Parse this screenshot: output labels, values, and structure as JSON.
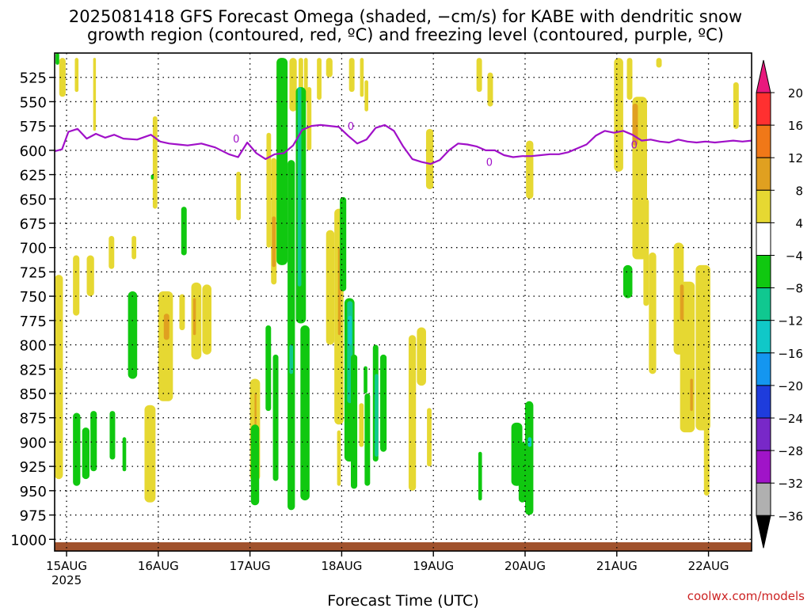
{
  "title_line1": "2025081418 GFS Forecast Omega (shaded, −cm/s) for KABE with dendritic snow",
  "title_line2": "growth region (contoured, red, ºC) and freezing level (contoured, purple, ºC)",
  "credit": "coolwx.com/models",
  "chart_data": {
    "type": "heatmap",
    "title": "2025081418 GFS Forecast Omega (shaded, −cm/s) for KABE with dendritic snow growth region (contoured, red, ºC) and freezing level (contoured, purple, ºC)",
    "xlabel": "Forecast Time (UTC)",
    "ylabel": "",
    "y_reversed": true,
    "ylim": [
      1012,
      500
    ],
    "xlim": [
      0.0,
      7.6
    ],
    "y_ticks": [
      525,
      550,
      575,
      600,
      625,
      650,
      675,
      700,
      725,
      750,
      775,
      800,
      825,
      850,
      875,
      900,
      925,
      950,
      975,
      1000
    ],
    "x_ticks": [
      {
        "x": 0.13,
        "label": "15AUG",
        "sub": "2025"
      },
      {
        "x": 1.13,
        "label": "16AUG"
      },
      {
        "x": 2.13,
        "label": "17AUG"
      },
      {
        "x": 3.13,
        "label": "18AUG"
      },
      {
        "x": 4.13,
        "label": "19AUG"
      },
      {
        "x": 5.13,
        "label": "20AUG"
      },
      {
        "x": 6.13,
        "label": "21AUG"
      },
      {
        "x": 7.13,
        "label": "22AUG"
      }
    ],
    "grid": true,
    "colorbar": {
      "labels": [
        "20",
        "16",
        "12",
        "8",
        "4",
        "−4",
        "−8",
        "−12",
        "−16",
        "−20",
        "−24",
        "−28",
        "−32",
        "−36"
      ],
      "bins": [
        {
          "from": 16,
          "to": 20,
          "color": "#ff3030"
        },
        {
          "from": 12,
          "to": 16,
          "color": "#f07818"
        },
        {
          "from": 8,
          "to": 12,
          "color": "#e0a020"
        },
        {
          "from": 4,
          "to": 8,
          "color": "#e6d832"
        },
        {
          "from": -4,
          "to": 4,
          "color": "#ffffff"
        },
        {
          "from": -8,
          "to": -4,
          "color": "#10c810"
        },
        {
          "from": -12,
          "to": -8,
          "color": "#10c890"
        },
        {
          "from": -16,
          "to": -12,
          "color": "#10c8c8"
        },
        {
          "from": -20,
          "to": -16,
          "color": "#1496f0"
        },
        {
          "from": -24,
          "to": -20,
          "color": "#1e3cdc"
        },
        {
          "from": -28,
          "to": -24,
          "color": "#7828c8"
        },
        {
          "from": -32,
          "to": -28,
          "color": "#a014c8"
        },
        {
          "from": -36,
          "to": -32,
          "color": "#b0b0b0"
        }
      ],
      "above_color": "#e8197d",
      "below_color": "#000000"
    },
    "freezing_level": {
      "label": "0",
      "color": "#a010c8",
      "x": [
        0.0,
        0.08,
        0.15,
        0.25,
        0.35,
        0.45,
        0.55,
        0.65,
        0.75,
        0.9,
        1.05,
        1.15,
        1.25,
        1.35,
        1.45,
        1.6,
        1.75,
        1.9,
        2.0,
        2.1,
        2.2,
        2.3,
        2.4,
        2.5,
        2.6,
        2.7,
        2.8,
        2.9,
        3.0,
        3.1,
        3.2,
        3.3,
        3.4,
        3.5,
        3.6,
        3.7,
        3.8,
        3.9,
        4.0,
        4.1,
        4.2,
        4.3,
        4.4,
        4.5,
        4.6,
        4.7,
        4.8,
        4.9,
        5.0,
        5.1,
        5.2,
        5.3,
        5.4,
        5.5,
        5.6,
        5.7,
        5.8,
        5.9,
        6.0,
        6.1,
        6.2,
        6.3,
        6.4,
        6.5,
        6.6,
        6.7,
        6.8,
        6.9,
        7.0,
        7.1,
        7.2,
        7.3,
        7.4,
        7.5,
        7.6
      ],
      "y": [
        601,
        599,
        581,
        578,
        588,
        583,
        587,
        584,
        588,
        589,
        584,
        591,
        593,
        594,
        595,
        593,
        597,
        604,
        607,
        592,
        603,
        609,
        604,
        603,
        595,
        579,
        575,
        574,
        575,
        576,
        585,
        593,
        589,
        577,
        574,
        580,
        596,
        609,
        612,
        614,
        610,
        600,
        593,
        594,
        596,
        600,
        600,
        605,
        607,
        606,
        606,
        605,
        604,
        604,
        602,
        598,
        594,
        585,
        580,
        582,
        580,
        584,
        590,
        589,
        591,
        592,
        589,
        591,
        592,
        591,
        592,
        591,
        590,
        591,
        590
      ]
    },
    "surface_strip": {
      "from": 1012,
      "to": 1003,
      "color": "#a0522d"
    },
    "cells": [
      {
        "x0": 0.05,
        "x1": 0.12,
        "p0": 505,
        "p1": 545,
        "v": 5
      },
      {
        "x0": 0.22,
        "x1": 0.26,
        "p0": 505,
        "p1": 540,
        "v": 5
      },
      {
        "x0": 0.42,
        "x1": 0.45,
        "p0": 505,
        "p1": 580,
        "v": 5
      },
      {
        "x0": 0.0,
        "x1": 0.09,
        "p0": 728,
        "p1": 938,
        "v": 5
      },
      {
        "x0": 0.2,
        "x1": 0.27,
        "p0": 708,
        "p1": 770,
        "v": 5
      },
      {
        "x0": 0.35,
        "x1": 0.43,
        "p0": 708,
        "p1": 750,
        "v": 5
      },
      {
        "x0": 0.59,
        "x1": 0.65,
        "p0": 688,
        "p1": 722,
        "v": 5
      },
      {
        "x0": 0.84,
        "x1": 0.89,
        "p0": 688,
        "p1": 712,
        "v": 5
      },
      {
        "x0": 1.07,
        "x1": 1.12,
        "p0": 565,
        "p1": 660,
        "v": 5
      },
      {
        "x0": 0.98,
        "x1": 1.1,
        "p0": 862,
        "p1": 962,
        "v": 5
      },
      {
        "x0": 1.13,
        "x1": 1.29,
        "p0": 745,
        "p1": 858,
        "v": 5
      },
      {
        "x0": 1.19,
        "x1": 1.25,
        "p0": 768,
        "p1": 795,
        "v": 9
      },
      {
        "x0": 1.36,
        "x1": 1.42,
        "p0": 748,
        "p1": 785,
        "v": 5
      },
      {
        "x0": 1.49,
        "x1": 1.6,
        "p0": 736,
        "p1": 815,
        "v": 5
      },
      {
        "x0": 1.51,
        "x1": 1.54,
        "p0": 752,
        "p1": 790,
        "v": 9
      },
      {
        "x0": 1.61,
        "x1": 1.71,
        "p0": 738,
        "p1": 810,
        "v": 5
      },
      {
        "x0": 2.13,
        "x1": 2.24,
        "p0": 835,
        "p1": 940,
        "v": 5
      },
      {
        "x0": 2.18,
        "x1": 2.2,
        "p0": 850,
        "p1": 900,
        "v": 9
      },
      {
        "x0": 1.98,
        "x1": 2.03,
        "p0": 622,
        "p1": 672,
        "v": 5
      },
      {
        "x0": 2.31,
        "x1": 2.36,
        "p0": 582,
        "p1": 700,
        "v": 5
      },
      {
        "x0": 2.36,
        "x1": 2.42,
        "p0": 608,
        "p1": 738,
        "v": 5
      },
      {
        "x0": 2.37,
        "x1": 2.41,
        "p0": 668,
        "p1": 720,
        "v": 9
      },
      {
        "x0": 2.42,
        "x1": 2.52,
        "p0": 505,
        "p1": 715,
        "v": 5
      },
      {
        "x0": 2.56,
        "x1": 2.64,
        "p0": 505,
        "p1": 560,
        "v": 5
      },
      {
        "x0": 2.66,
        "x1": 2.71,
        "p0": 505,
        "p1": 548,
        "v": 5
      },
      {
        "x0": 2.72,
        "x1": 2.76,
        "p0": 505,
        "p1": 550,
        "v": 5
      },
      {
        "x0": 2.86,
        "x1": 2.91,
        "p0": 505,
        "p1": 548,
        "v": 5
      },
      {
        "x0": 2.75,
        "x1": 2.8,
        "p0": 535,
        "p1": 600,
        "v": 5
      },
      {
        "x0": 2.96,
        "x1": 3.03,
        "p0": 505,
        "p1": 525,
        "v": 5
      },
      {
        "x0": 3.21,
        "x1": 3.27,
        "p0": 505,
        "p1": 540,
        "v": 5
      },
      {
        "x0": 3.33,
        "x1": 3.37,
        "p0": 505,
        "p1": 545,
        "v": 5
      },
      {
        "x0": 3.38,
        "x1": 3.42,
        "p0": 528,
        "p1": 560,
        "v": 5
      },
      {
        "x0": 2.96,
        "x1": 3.05,
        "p0": 682,
        "p1": 800,
        "v": 5
      },
      {
        "x0": 3.05,
        "x1": 3.15,
        "p0": 660,
        "p1": 882,
        "v": 5
      },
      {
        "x0": 3.09,
        "x1": 3.12,
        "p0": 700,
        "p1": 790,
        "v": 9
      },
      {
        "x0": 3.08,
        "x1": 3.12,
        "p0": 888,
        "p1": 945,
        "v": 5
      },
      {
        "x0": 3.32,
        "x1": 3.37,
        "p0": 860,
        "p1": 905,
        "v": 5
      },
      {
        "x0": 4.05,
        "x1": 4.13,
        "p0": 578,
        "p1": 640,
        "v": 5
      },
      {
        "x0": 3.86,
        "x1": 3.94,
        "p0": 790,
        "p1": 950,
        "v": 5
      },
      {
        "x0": 3.95,
        "x1": 4.05,
        "p0": 782,
        "p1": 842,
        "v": 5
      },
      {
        "x0": 4.06,
        "x1": 4.11,
        "p0": 865,
        "p1": 925,
        "v": 5
      },
      {
        "x0": 4.6,
        "x1": 4.66,
        "p0": 505,
        "p1": 540,
        "v": 5
      },
      {
        "x0": 4.72,
        "x1": 4.78,
        "p0": 520,
        "p1": 555,
        "v": 5
      },
      {
        "x0": 5.14,
        "x1": 5.22,
        "p0": 590,
        "p1": 650,
        "v": 5
      },
      {
        "x0": 6.1,
        "x1": 6.2,
        "p0": 505,
        "p1": 622,
        "v": 5
      },
      {
        "x0": 6.24,
        "x1": 6.3,
        "p0": 505,
        "p1": 548,
        "v": 5
      },
      {
        "x0": 6.3,
        "x1": 6.46,
        "p0": 545,
        "p1": 712,
        "v": 5
      },
      {
        "x0": 6.3,
        "x1": 6.36,
        "p0": 552,
        "p1": 595,
        "v": 9
      },
      {
        "x0": 6.42,
        "x1": 6.48,
        "p0": 650,
        "p1": 760,
        "v": 5
      },
      {
        "x0": 6.48,
        "x1": 6.56,
        "p0": 705,
        "p1": 830,
        "v": 5
      },
      {
        "x0": 6.56,
        "x1": 6.62,
        "p0": 505,
        "p1": 515,
        "v": 5
      },
      {
        "x0": 6.75,
        "x1": 6.86,
        "p0": 695,
        "p1": 810,
        "v": 5
      },
      {
        "x0": 6.82,
        "x1": 6.98,
        "p0": 735,
        "p1": 890,
        "v": 5
      },
      {
        "x0": 6.82,
        "x1": 6.86,
        "p0": 738,
        "p1": 775,
        "v": 9
      },
      {
        "x0": 6.93,
        "x1": 6.96,
        "p0": 835,
        "p1": 868,
        "v": 9
      },
      {
        "x0": 6.99,
        "x1": 7.15,
        "p0": 718,
        "p1": 888,
        "v": 5
      },
      {
        "x0": 7.08,
        "x1": 7.14,
        "p0": 885,
        "p1": 955,
        "v": 5
      },
      {
        "x0": 7.4,
        "x1": 7.46,
        "p0": 530,
        "p1": 578,
        "v": 5
      },
      {
        "x0": 2.42,
        "x1": 2.54,
        "p0": 505,
        "p1": 718,
        "v": -5
      },
      {
        "x0": 2.54,
        "x1": 2.62,
        "p0": 610,
        "p1": 970,
        "v": -5
      },
      {
        "x0": 2.56,
        "x1": 2.6,
        "p0": 800,
        "p1": 830,
        "v": -9
      },
      {
        "x0": 2.63,
        "x1": 2.74,
        "p0": 535,
        "p1": 778,
        "v": -5
      },
      {
        "x0": 2.65,
        "x1": 2.69,
        "p0": 535,
        "p1": 740,
        "v": -9
      },
      {
        "x0": 2.69,
        "x1": 2.73,
        "p0": 600,
        "p1": 720,
        "v": -5
      },
      {
        "x0": 2.68,
        "x1": 2.78,
        "p0": 780,
        "p1": 960,
        "v": -5
      },
      {
        "x0": 2.14,
        "x1": 2.23,
        "p0": 882,
        "p1": 965,
        "v": -5
      },
      {
        "x0": 2.3,
        "x1": 2.36,
        "p0": 780,
        "p1": 868,
        "v": -5
      },
      {
        "x0": 2.38,
        "x1": 2.44,
        "p0": 810,
        "p1": 940,
        "v": -5
      },
      {
        "x0": 3.11,
        "x1": 3.18,
        "p0": 648,
        "p1": 745,
        "v": -5
      },
      {
        "x0": 3.16,
        "x1": 3.27,
        "p0": 752,
        "p1": 920,
        "v": -5
      },
      {
        "x0": 3.19,
        "x1": 3.25,
        "p0": 755,
        "p1": 860,
        "v": -9
      },
      {
        "x0": 3.2,
        "x1": 3.24,
        "p0": 770,
        "p1": 800,
        "v": -13
      },
      {
        "x0": 3.23,
        "x1": 3.3,
        "p0": 810,
        "p1": 948,
        "v": -5
      },
      {
        "x0": 3.38,
        "x1": 3.44,
        "p0": 850,
        "p1": 945,
        "v": -5
      },
      {
        "x0": 3.47,
        "x1": 3.53,
        "p0": 800,
        "p1": 920,
        "v": -5
      },
      {
        "x0": 3.49,
        "x1": 3.53,
        "p0": 830,
        "p1": 915,
        "v": -9
      },
      {
        "x0": 3.55,
        "x1": 3.62,
        "p0": 810,
        "p1": 910,
        "v": -5
      },
      {
        "x0": 3.37,
        "x1": 3.41,
        "p0": 822,
        "p1": 850,
        "v": -5
      },
      {
        "x0": 0.01,
        "x1": 0.05,
        "p0": 500,
        "p1": 512,
        "v": -5
      },
      {
        "x0": 0.2,
        "x1": 0.28,
        "p0": 870,
        "p1": 945,
        "v": -5
      },
      {
        "x0": 0.3,
        "x1": 0.38,
        "p0": 885,
        "p1": 938,
        "v": -5
      },
      {
        "x0": 0.39,
        "x1": 0.46,
        "p0": 868,
        "p1": 930,
        "v": -5
      },
      {
        "x0": 0.6,
        "x1": 0.66,
        "p0": 868,
        "p1": 918,
        "v": -5
      },
      {
        "x0": 0.74,
        "x1": 0.78,
        "p0": 895,
        "p1": 930,
        "v": -5
      },
      {
        "x0": 0.8,
        "x1": 0.9,
        "p0": 745,
        "p1": 835,
        "v": -5
      },
      {
        "x0": 1.38,
        "x1": 1.44,
        "p0": 658,
        "p1": 708,
        "v": -5
      },
      {
        "x0": 1.05,
        "x1": 1.08,
        "p0": 625,
        "p1": 630,
        "v": -5
      },
      {
        "x0": 4.98,
        "x1": 5.1,
        "p0": 880,
        "p1": 945,
        "v": -5
      },
      {
        "x0": 5.06,
        "x1": 5.14,
        "p0": 900,
        "p1": 962,
        "v": -5
      },
      {
        "x0": 5.13,
        "x1": 5.22,
        "p0": 858,
        "p1": 975,
        "v": -5
      },
      {
        "x0": 5.16,
        "x1": 5.2,
        "p0": 895,
        "p1": 905,
        "v": -13
      },
      {
        "x0": 4.62,
        "x1": 4.66,
        "p0": 910,
        "p1": 960,
        "v": -5
      },
      {
        "x0": 6.2,
        "x1": 6.3,
        "p0": 718,
        "p1": 752,
        "v": -5
      }
    ]
  }
}
